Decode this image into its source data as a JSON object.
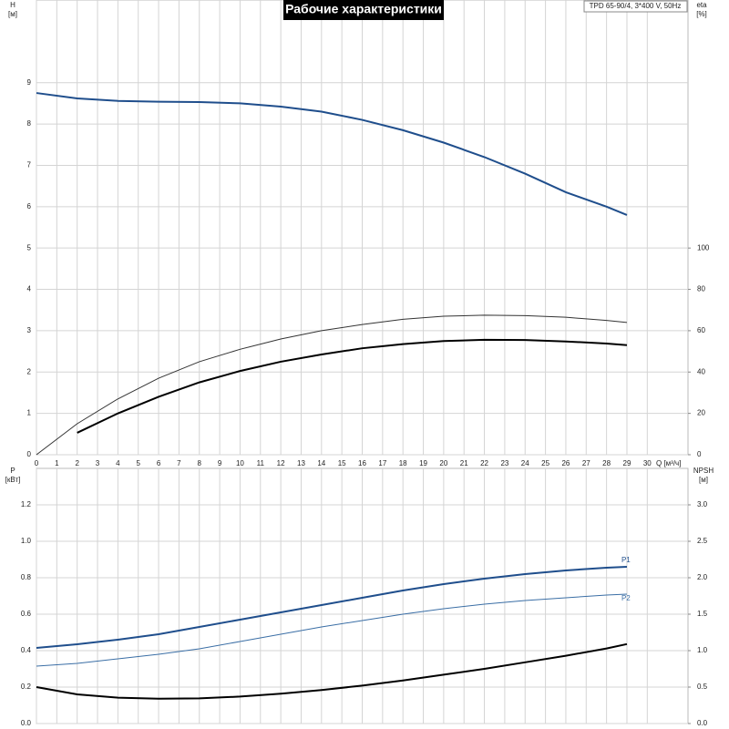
{
  "chart_data": [
    {
      "type": "line",
      "title": "Рабочие характеристики",
      "subtitle": "TPD 65-90/4, 3*400 V, 50Hz",
      "ylabel": "H",
      "yunit": "[м]",
      "y2label": "eta",
      "y2unit": "[%]",
      "xlabel": "Q [м³/ч]",
      "x": [
        0,
        2,
        4,
        6,
        8,
        10,
        12,
        14,
        16,
        18,
        20,
        22,
        24,
        26,
        28,
        29
      ],
      "xlim": [
        0,
        32
      ],
      "xticks": [
        0,
        1,
        2,
        3,
        4,
        5,
        6,
        7,
        8,
        9,
        10,
        11,
        12,
        13,
        14,
        15,
        16,
        17,
        18,
        19,
        20,
        21,
        22,
        23,
        24,
        25,
        26,
        27,
        28,
        29,
        30
      ],
      "ylim": [
        0,
        11
      ],
      "yticks": [
        0,
        1,
        2,
        3,
        4,
        5,
        6,
        7,
        8,
        9
      ],
      "y2lim": [
        0,
        220
      ],
      "y2ticks": [
        0,
        20,
        40,
        60,
        80,
        100
      ],
      "grid": true,
      "series": [
        {
          "color": "#1f4e8c",
          "style": "thick",
          "values": [
            8.75,
            8.62,
            8.56,
            8.54,
            8.53,
            8.5,
            8.42,
            8.3,
            8.1,
            7.85,
            7.55,
            7.2,
            6.8,
            6.35,
            6.0,
            5.8
          ]
        },
        {
          "color": "#333333",
          "style": "thin",
          "axis": "y2",
          "values": [
            0,
            15,
            27,
            37,
            45,
            51,
            56,
            60,
            63,
            65.5,
            67,
            67.5,
            67.3,
            66.5,
            65,
            64
          ]
        },
        {
          "color": "#000000",
          "style": "thick",
          "axis": "y2",
          "values": [
            null,
            10.6,
            20,
            28,
            35,
            40.5,
            45,
            48.5,
            51.5,
            53.5,
            55,
            55.6,
            55.5,
            54.8,
            53.8,
            53
          ]
        }
      ]
    },
    {
      "type": "line",
      "ylabel": "P",
      "yunit": "[кВт]",
      "y2label": "NPSH",
      "y2unit": "[м]",
      "x": [
        0,
        2,
        4,
        6,
        8,
        10,
        12,
        14,
        16,
        18,
        20,
        22,
        24,
        26,
        28,
        29
      ],
      "xlim": [
        0,
        32
      ],
      "ylim": [
        0,
        1.4
      ],
      "yticks": [
        {
          "value": 0,
          "label": "0.0"
        },
        {
          "value": 0.2,
          "label": "0.2"
        },
        {
          "value": 0.4,
          "label": "0.4"
        },
        {
          "value": 0.6,
          "label": "0.6"
        },
        {
          "value": 0.8,
          "label": "0.8"
        },
        {
          "value": 1,
          "label": "1.0"
        },
        {
          "value": 1.2,
          "label": "1.2"
        }
      ],
      "y2lim": [
        0,
        3.5
      ],
      "y2ticks": [
        {
          "value": 0,
          "label": "0.0"
        },
        {
          "value": 0.5,
          "label": "0.5"
        },
        {
          "value": 1,
          "label": "1.0"
        },
        {
          "value": 1.5,
          "label": "1.5"
        },
        {
          "value": 2,
          "label": "2.0"
        },
        {
          "value": 2.5,
          "label": "2.5"
        },
        {
          "value": 3,
          "label": "3.0"
        }
      ],
      "grid": true,
      "series": [
        {
          "name": "P1",
          "color": "#1f4e8c",
          "style": "thick",
          "values": [
            0.415,
            0.435,
            0.46,
            0.49,
            0.53,
            0.57,
            0.61,
            0.65,
            0.69,
            0.73,
            0.765,
            0.795,
            0.82,
            0.84,
            0.855,
            0.86
          ]
        },
        {
          "name": "P2",
          "color": "#3a6ea5",
          "style": "thin",
          "values": [
            0.315,
            0.33,
            0.355,
            0.38,
            0.41,
            0.45,
            0.49,
            0.53,
            0.565,
            0.6,
            0.63,
            0.655,
            0.675,
            0.69,
            0.705,
            0.71
          ]
        },
        {
          "color": "#000000",
          "style": "thick",
          "axis": "y2",
          "values": [
            0.5,
            0.4,
            0.355,
            0.34,
            0.345,
            0.37,
            0.41,
            0.46,
            0.52,
            0.59,
            0.67,
            0.75,
            0.84,
            0.93,
            1.03,
            1.09
          ]
        }
      ]
    }
  ]
}
